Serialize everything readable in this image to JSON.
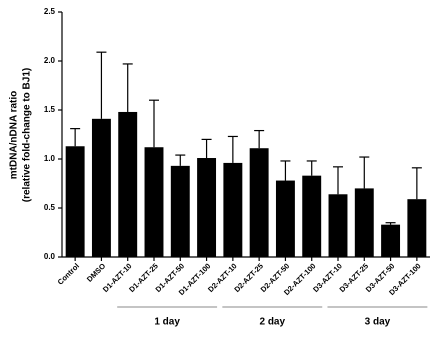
{
  "chart_data": {
    "type": "bar",
    "y_label": [
      "mtDNA/nDNA ratio",
      "(relative fold-change to BJ1)"
    ],
    "categories": [
      "Control",
      "DMSO",
      "D1-AZT-10",
      "D1-AZT-25",
      "D1-AZT-50",
      "D1-AZT-100",
      "D2-AZT-10",
      "D2-AZT-25",
      "D2-AZT-50",
      "D2-AZT-100",
      "D3-AZT-10",
      "D3-AZT-25",
      "D3-AZT-50",
      "D3-AZT-100"
    ],
    "values": [
      1.13,
      1.41,
      1.48,
      1.12,
      0.93,
      1.01,
      0.96,
      1.11,
      0.78,
      0.83,
      0.64,
      0.7,
      0.33,
      0.59
    ],
    "errors": [
      0.18,
      0.68,
      0.49,
      0.48,
      0.11,
      0.19,
      0.27,
      0.18,
      0.2,
      0.15,
      0.28,
      0.32,
      0.02,
      0.32
    ],
    "color": "#000000",
    "ylim": [
      0,
      2.5
    ],
    "yticks": [
      {
        "value": 0,
        "label": "0.0"
      },
      0.5,
      {
        "value": 1,
        "label": "1.0"
      },
      1.5,
      {
        "value": 2,
        "label": "2.0"
      },
      2.5
    ],
    "groups": [
      {
        "label": "1 day",
        "first": 2,
        "last": 5
      },
      {
        "label": "2 day",
        "first": 6,
        "last": 9
      },
      {
        "label": "3 day",
        "first": 10,
        "last": 13
      }
    ]
  }
}
